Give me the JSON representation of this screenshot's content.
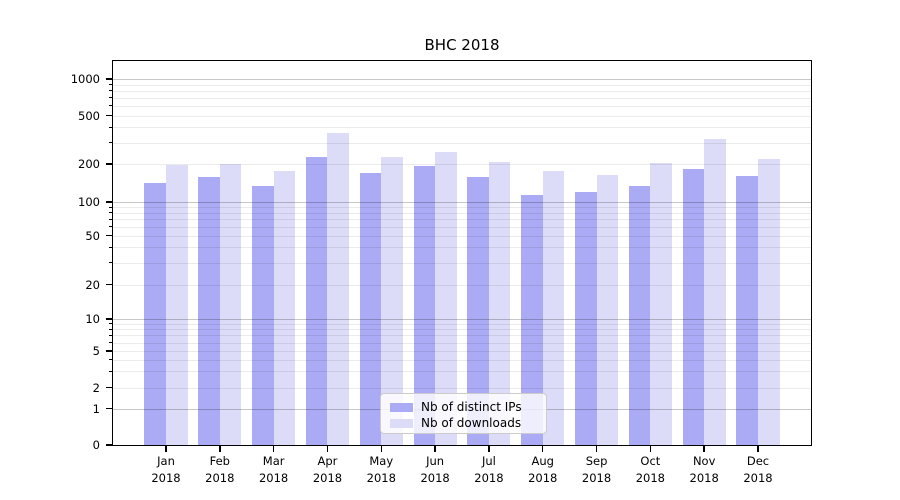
{
  "title": "BHC 2018",
  "chart_data": {
    "type": "bar",
    "title": "BHC 2018",
    "categories": [
      "Jan",
      "Feb",
      "Mar",
      "Apr",
      "May",
      "Jun",
      "Jul",
      "Aug",
      "Sep",
      "Oct",
      "Nov",
      "Dec"
    ],
    "category_year": "2018",
    "series": [
      {
        "name": "Nb of distinct IPs",
        "color": "#aaaaf5",
        "values": [
          142,
          159,
          135,
          229,
          171,
          192,
          159,
          114,
          119,
          135,
          182,
          160
        ]
      },
      {
        "name": "Nb of downloads",
        "color": "#dcdcf8",
        "values": [
          197,
          200,
          175,
          362,
          229,
          252,
          208,
          176,
          163,
          205,
          318,
          221
        ]
      }
    ],
    "xlabel": "",
    "ylabel": "",
    "y_scale": "symlog",
    "y_ticks": [
      0,
      1,
      2,
      5,
      10,
      20,
      50,
      100,
      200,
      500,
      1000
    ],
    "ylim": [
      0,
      1400
    ],
    "bar_width_fraction": 0.4,
    "grid": "horizontal major and minor gridlines",
    "legend_position": "lower center"
  },
  "colors": {
    "background": "#ffffff",
    "axis": "#000000",
    "major_grid": "#c7c7c7",
    "minor_grid": "#ebebeb",
    "bar_dark": "#aaaaf5",
    "bar_light": "#dcdcf8"
  }
}
